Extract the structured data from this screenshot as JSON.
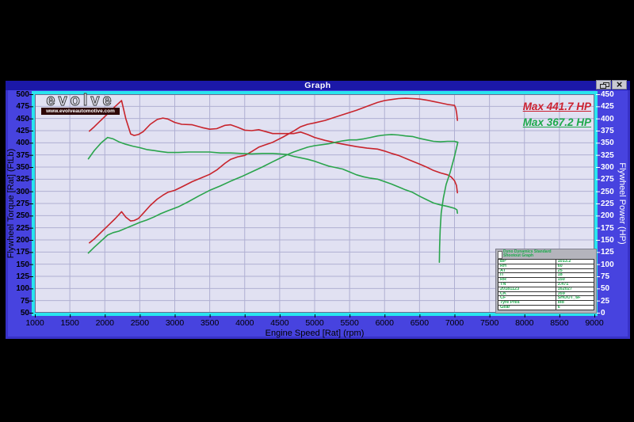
{
  "window": {
    "title": "Graph",
    "close_glyph": "×"
  },
  "logo": {
    "brand": "evolve",
    "url_text": "www.evolveautomotive.com"
  },
  "annotations": {
    "max_red": "Max 441.7 HP",
    "max_green": "Max 367.2 HP"
  },
  "axes": {
    "x": {
      "label": "Engine Speed [Rat] (rpm)",
      "min": 1000,
      "max": 9000,
      "step": 500
    },
    "y_left": {
      "label": "Flywheel Torque [Rat] (FtLb)",
      "min": 50,
      "max": 500,
      "step": 25
    },
    "y_right": {
      "label": "Flywheel Power (HP)",
      "min": 0,
      "max": 450,
      "step": 25
    }
  },
  "chart_data": {
    "type": "line",
    "x_unit": "rpm",
    "grid": true,
    "series": [
      {
        "name": "torque-red",
        "color": "#c8242c",
        "axis": "left",
        "points": [
          [
            1780,
            424
          ],
          [
            1850,
            433
          ],
          [
            1950,
            447
          ],
          [
            2050,
            461
          ],
          [
            2150,
            475
          ],
          [
            2240,
            487
          ],
          [
            2300,
            450
          ],
          [
            2370,
            418
          ],
          [
            2420,
            415
          ],
          [
            2480,
            417
          ],
          [
            2550,
            423
          ],
          [
            2650,
            438
          ],
          [
            2750,
            448
          ],
          [
            2830,
            451
          ],
          [
            2900,
            449
          ],
          [
            3000,
            442
          ],
          [
            3100,
            438
          ],
          [
            3250,
            437
          ],
          [
            3400,
            431
          ],
          [
            3500,
            428
          ],
          [
            3600,
            429
          ],
          [
            3720,
            436
          ],
          [
            3800,
            437
          ],
          [
            3900,
            432
          ],
          [
            4000,
            426
          ],
          [
            4100,
            425
          ],
          [
            4200,
            427
          ],
          [
            4300,
            423
          ],
          [
            4400,
            419
          ],
          [
            4550,
            419
          ],
          [
            4700,
            419
          ],
          [
            4800,
            422
          ],
          [
            4900,
            417
          ],
          [
            5000,
            411
          ],
          [
            5150,
            405
          ],
          [
            5300,
            400
          ],
          [
            5450,
            396
          ],
          [
            5600,
            392
          ],
          [
            5750,
            389
          ],
          [
            5900,
            387
          ],
          [
            6000,
            383
          ],
          [
            6100,
            378
          ],
          [
            6200,
            374
          ],
          [
            6300,
            368
          ],
          [
            6400,
            362
          ],
          [
            6500,
            356
          ],
          [
            6600,
            350
          ],
          [
            6700,
            343
          ],
          [
            6800,
            338
          ],
          [
            6900,
            334
          ],
          [
            6950,
            330
          ],
          [
            7000,
            322
          ],
          [
            7028,
            312
          ],
          [
            7042,
            297
          ]
        ]
      },
      {
        "name": "power-red",
        "color": "#c8242c",
        "axis": "right",
        "points": [
          [
            1780,
            144
          ],
          [
            1850,
            152
          ],
          [
            1950,
            166
          ],
          [
            2050,
            180
          ],
          [
            2150,
            194
          ],
          [
            2240,
            208
          ],
          [
            2300,
            197
          ],
          [
            2370,
            189
          ],
          [
            2420,
            190
          ],
          [
            2480,
            194
          ],
          [
            2550,
            205
          ],
          [
            2650,
            221
          ],
          [
            2750,
            234
          ],
          [
            2830,
            242
          ],
          [
            2900,
            248
          ],
          [
            3000,
            252
          ],
          [
            3100,
            259
          ],
          [
            3250,
            270
          ],
          [
            3400,
            279
          ],
          [
            3500,
            285
          ],
          [
            3600,
            294
          ],
          [
            3720,
            308
          ],
          [
            3800,
            316
          ],
          [
            3900,
            321
          ],
          [
            4000,
            324
          ],
          [
            4100,
            332
          ],
          [
            4200,
            341
          ],
          [
            4300,
            346
          ],
          [
            4400,
            351
          ],
          [
            4550,
            362
          ],
          [
            4700,
            374
          ],
          [
            4800,
            383
          ],
          [
            4900,
            388
          ],
          [
            5000,
            391
          ],
          [
            5150,
            396
          ],
          [
            5300,
            403
          ],
          [
            5450,
            410
          ],
          [
            5600,
            417
          ],
          [
            5750,
            425
          ],
          [
            5900,
            433
          ],
          [
            6000,
            437
          ],
          [
            6100,
            439
          ],
          [
            6200,
            441
          ],
          [
            6300,
            441.7
          ],
          [
            6400,
            441
          ],
          [
            6500,
            440
          ],
          [
            6600,
            438
          ],
          [
            6700,
            435
          ],
          [
            6800,
            432
          ],
          [
            6900,
            429
          ],
          [
            6950,
            428
          ],
          [
            7000,
            427
          ],
          [
            7018,
            421
          ],
          [
            7032,
            410
          ],
          [
            7042,
            396
          ]
        ]
      },
      {
        "name": "torque-green",
        "color": "#2aa44c",
        "axis": "left",
        "points": [
          [
            1765,
            367
          ],
          [
            1850,
            384
          ],
          [
            1950,
            400
          ],
          [
            2040,
            411
          ],
          [
            2120,
            408
          ],
          [
            2200,
            402
          ],
          [
            2300,
            397
          ],
          [
            2400,
            393
          ],
          [
            2500,
            390
          ],
          [
            2600,
            386
          ],
          [
            2700,
            384
          ],
          [
            2800,
            382
          ],
          [
            2900,
            380
          ],
          [
            3050,
            380
          ],
          [
            3200,
            381
          ],
          [
            3350,
            381
          ],
          [
            3500,
            381
          ],
          [
            3650,
            379
          ],
          [
            3800,
            379
          ],
          [
            3950,
            378
          ],
          [
            4100,
            377
          ],
          [
            4250,
            378
          ],
          [
            4400,
            378
          ],
          [
            4500,
            377
          ],
          [
            4600,
            376
          ],
          [
            4700,
            372
          ],
          [
            4800,
            369
          ],
          [
            4900,
            366
          ],
          [
            5000,
            362
          ],
          [
            5100,
            357
          ],
          [
            5200,
            352
          ],
          [
            5300,
            349
          ],
          [
            5400,
            346
          ],
          [
            5500,
            340
          ],
          [
            5600,
            334
          ],
          [
            5700,
            330
          ],
          [
            5800,
            327
          ],
          [
            5900,
            325
          ],
          [
            6000,
            320
          ],
          [
            6100,
            315
          ],
          [
            6200,
            309
          ],
          [
            6300,
            303
          ],
          [
            6400,
            298
          ],
          [
            6500,
            290
          ],
          [
            6600,
            283
          ],
          [
            6700,
            276
          ],
          [
            6800,
            272
          ],
          [
            6900,
            269
          ],
          [
            7000,
            265
          ],
          [
            7035,
            262
          ],
          [
            7042,
            255
          ]
        ]
      },
      {
        "name": "power-green",
        "color": "#2aa44c",
        "axis": "right",
        "points": [
          [
            1765,
            123
          ],
          [
            1850,
            135
          ],
          [
            1950,
            148
          ],
          [
            2040,
            160
          ],
          [
            2120,
            165
          ],
          [
            2200,
            168
          ],
          [
            2300,
            174
          ],
          [
            2400,
            180
          ],
          [
            2500,
            186
          ],
          [
            2600,
            191
          ],
          [
            2700,
            197
          ],
          [
            2800,
            204
          ],
          [
            2900,
            210
          ],
          [
            3050,
            218
          ],
          [
            3200,
            229
          ],
          [
            3350,
            241
          ],
          [
            3500,
            252
          ],
          [
            3650,
            261
          ],
          [
            3800,
            271
          ],
          [
            3950,
            280
          ],
          [
            4100,
            290
          ],
          [
            4250,
            300
          ],
          [
            4400,
            311
          ],
          [
            4500,
            318
          ],
          [
            4600,
            325
          ],
          [
            4700,
            331
          ],
          [
            4800,
            336
          ],
          [
            4900,
            341
          ],
          [
            5000,
            344
          ],
          [
            5100,
            346
          ],
          [
            5200,
            348
          ],
          [
            5300,
            351
          ],
          [
            5400,
            354
          ],
          [
            5500,
            356
          ],
          [
            5600,
            356
          ],
          [
            5700,
            358
          ],
          [
            5800,
            361
          ],
          [
            5900,
            364
          ],
          [
            6000,
            366
          ],
          [
            6100,
            367
          ],
          [
            6200,
            366
          ],
          [
            6300,
            364
          ],
          [
            6400,
            363
          ],
          [
            6500,
            359
          ],
          [
            6600,
            356
          ],
          [
            6700,
            353
          ],
          [
            6800,
            352
          ],
          [
            6900,
            353
          ],
          [
            7000,
            353
          ],
          [
            7048,
            351
          ]
        ]
      },
      {
        "name": "power-green-falloff",
        "color": "#2aa44c",
        "axis": "right",
        "points": [
          [
            7048,
            351
          ],
          [
            7000,
            322
          ],
          [
            6940,
            290
          ],
          [
            6880,
            264
          ],
          [
            6840,
            236
          ],
          [
            6810,
            205
          ],
          [
            6795,
            170
          ],
          [
            6787,
            135
          ],
          [
            6784,
            104
          ]
        ]
      }
    ]
  },
  "info_table": {
    "header_line1": "Dyno Dynamics Standard",
    "header_line2": "Shootout Graph",
    "rows": [
      [
        "BP",
        "1013.2"
      ],
      [
        "RH",
        "60"
      ],
      [
        "AT",
        "25"
      ],
      [
        "IT",
        "18"
      ],
      [
        "RR",
        "150"
      ],
      [
        "TN",
        "3.471"
      ],
      [
        "20181123",
        "162027"
      ],
      [
        "CK",
        "359"
      ],
      [
        "CF",
        "SHOOT_6F"
      ],
      [
        "Tyre Pres",
        "std"
      ],
      [
        "Gear",
        "6"
      ]
    ]
  }
}
